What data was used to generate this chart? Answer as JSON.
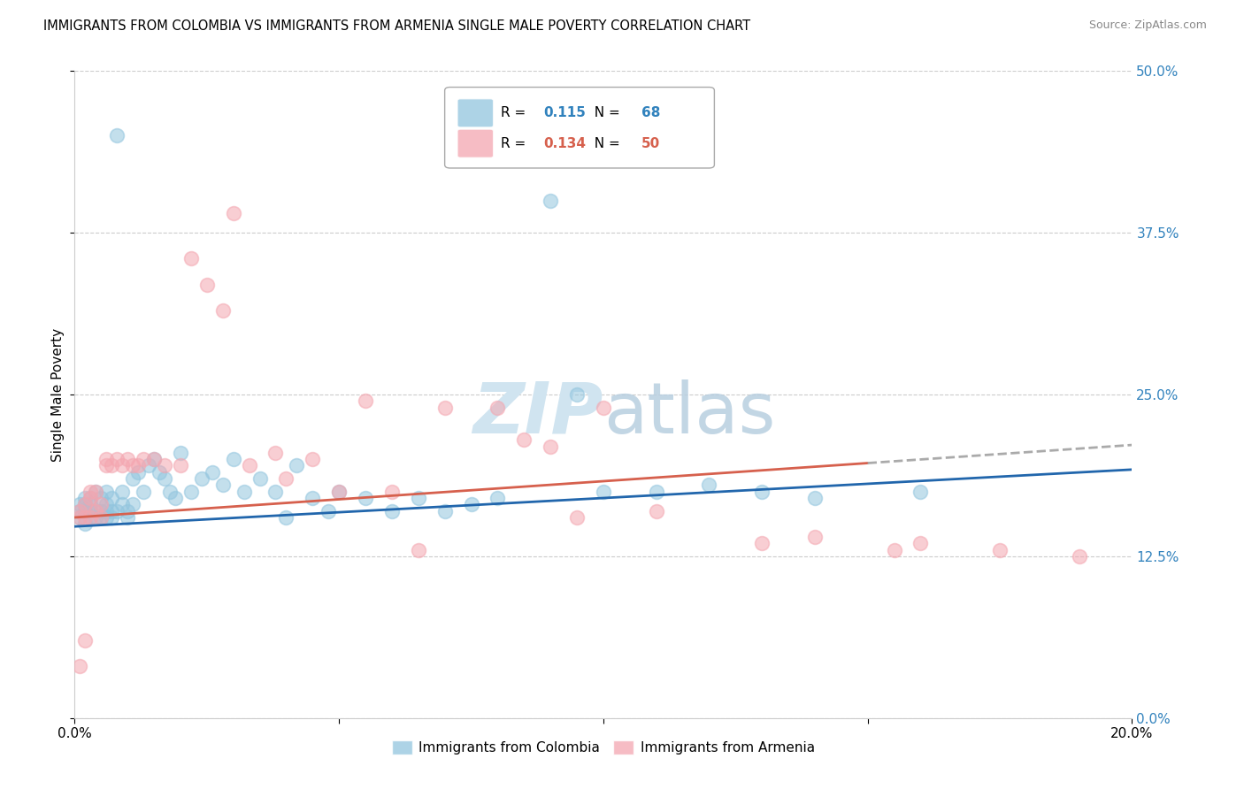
{
  "title": "IMMIGRANTS FROM COLOMBIA VS IMMIGRANTS FROM ARMENIA SINGLE MALE POVERTY CORRELATION CHART",
  "source": "Source: ZipAtlas.com",
  "ylabel": "Single Male Poverty",
  "xlim": [
    0.0,
    0.2
  ],
  "ylim": [
    0.0,
    0.5
  ],
  "xticks": [
    0.0,
    0.05,
    0.1,
    0.15,
    0.2
  ],
  "xtick_labels": [
    "0.0%",
    "",
    "",
    "",
    "20.0%"
  ],
  "ytick_labels_right": [
    "0.0%",
    "12.5%",
    "25.0%",
    "37.5%",
    "50.0%"
  ],
  "yticks": [
    0.0,
    0.125,
    0.25,
    0.375,
    0.5
  ],
  "colombia_R": 0.115,
  "colombia_N": 68,
  "armenia_R": 0.134,
  "armenia_N": 50,
  "colombia_color": "#92c5de",
  "armenia_color": "#f4a6b0",
  "colombia_line_color": "#2166ac",
  "armenia_line_color": "#d6604d",
  "watermark": "ZIPatlas",
  "watermark_color": "#d0e4f0",
  "colombia_x": [
    0.001,
    0.001,
    0.001,
    0.002,
    0.002,
    0.002,
    0.002,
    0.003,
    0.003,
    0.003,
    0.003,
    0.004,
    0.004,
    0.004,
    0.005,
    0.005,
    0.005,
    0.006,
    0.006,
    0.006,
    0.006,
    0.007,
    0.007,
    0.007,
    0.008,
    0.008,
    0.009,
    0.009,
    0.01,
    0.01,
    0.011,
    0.011,
    0.012,
    0.013,
    0.014,
    0.015,
    0.016,
    0.017,
    0.018,
    0.019,
    0.02,
    0.022,
    0.024,
    0.026,
    0.028,
    0.03,
    0.032,
    0.035,
    0.038,
    0.04,
    0.042,
    0.045,
    0.048,
    0.05,
    0.055,
    0.06,
    0.065,
    0.07,
    0.075,
    0.08,
    0.09,
    0.095,
    0.1,
    0.11,
    0.12,
    0.13,
    0.14,
    0.16
  ],
  "colombia_y": [
    0.155,
    0.16,
    0.165,
    0.15,
    0.16,
    0.165,
    0.17,
    0.155,
    0.16,
    0.165,
    0.17,
    0.155,
    0.16,
    0.175,
    0.155,
    0.16,
    0.17,
    0.155,
    0.16,
    0.165,
    0.175,
    0.155,
    0.16,
    0.17,
    0.16,
    0.45,
    0.165,
    0.175,
    0.155,
    0.16,
    0.165,
    0.185,
    0.19,
    0.175,
    0.195,
    0.2,
    0.19,
    0.185,
    0.175,
    0.17,
    0.205,
    0.175,
    0.185,
    0.19,
    0.18,
    0.2,
    0.175,
    0.185,
    0.175,
    0.155,
    0.195,
    0.17,
    0.16,
    0.175,
    0.17,
    0.16,
    0.17,
    0.16,
    0.165,
    0.17,
    0.4,
    0.25,
    0.175,
    0.175,
    0.18,
    0.175,
    0.17,
    0.175
  ],
  "armenia_x": [
    0.001,
    0.001,
    0.001,
    0.002,
    0.002,
    0.002,
    0.003,
    0.003,
    0.003,
    0.004,
    0.004,
    0.005,
    0.005,
    0.006,
    0.006,
    0.007,
    0.008,
    0.009,
    0.01,
    0.011,
    0.012,
    0.013,
    0.015,
    0.017,
    0.02,
    0.022,
    0.025,
    0.028,
    0.03,
    0.033,
    0.038,
    0.04,
    0.045,
    0.05,
    0.055,
    0.06,
    0.065,
    0.07,
    0.08,
    0.085,
    0.09,
    0.095,
    0.1,
    0.11,
    0.13,
    0.14,
    0.155,
    0.16,
    0.175,
    0.19
  ],
  "armenia_y": [
    0.155,
    0.16,
    0.04,
    0.155,
    0.165,
    0.06,
    0.155,
    0.17,
    0.175,
    0.16,
    0.175,
    0.155,
    0.165,
    0.195,
    0.2,
    0.195,
    0.2,
    0.195,
    0.2,
    0.195,
    0.195,
    0.2,
    0.2,
    0.195,
    0.195,
    0.355,
    0.335,
    0.315,
    0.39,
    0.195,
    0.205,
    0.185,
    0.2,
    0.175,
    0.245,
    0.175,
    0.13,
    0.24,
    0.24,
    0.215,
    0.21,
    0.155,
    0.24,
    0.16,
    0.135,
    0.14,
    0.13,
    0.135,
    0.13,
    0.125
  ],
  "line_intercept_col": 0.148,
  "line_slope_col": 0.22,
  "line_intercept_arm": 0.155,
  "line_slope_arm": 0.28
}
